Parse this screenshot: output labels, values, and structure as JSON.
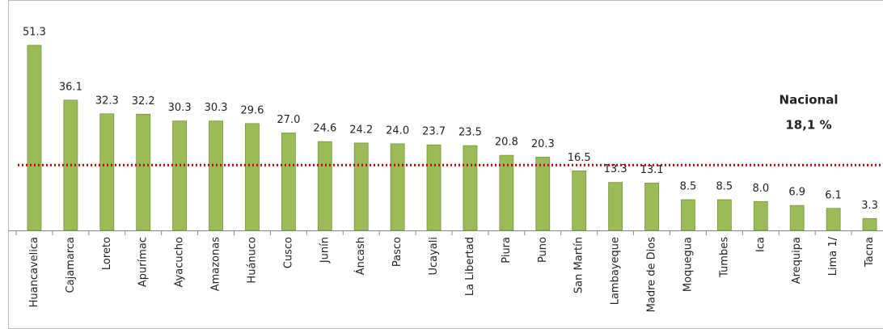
{
  "chart_data": {
    "type": "bar",
    "categories": [
      "Huancavelica",
      "Cajamarca",
      "Loreto",
      "Apurímac",
      "Ayacucho",
      "Amazonas",
      "Huánuco",
      "Cusco",
      "Junín",
      "Áncash",
      "Pasco",
      "Ucayali",
      "La Libertad",
      "Piura",
      "Puno",
      "San Martín",
      "Lambayeque",
      "Madre de Dios",
      "Moquegua",
      "Tumbes",
      "Ica",
      "Arequipa",
      "Lima 1/",
      "Tacna"
    ],
    "values": [
      51.3,
      36.1,
      32.3,
      32.2,
      30.3,
      30.3,
      29.6,
      27.0,
      24.6,
      24.2,
      24.0,
      23.7,
      23.5,
      20.8,
      20.3,
      16.5,
      13.3,
      13.1,
      8.5,
      8.5,
      8.0,
      6.9,
      6.1,
      3.3
    ],
    "value_labels": [
      "51.3",
      "36.1",
      "32.3",
      "32.2",
      "30.3",
      "30.3",
      "29.6",
      "27.0",
      "24.6",
      "24.2",
      "24.0",
      "23.7",
      "23.5",
      "20.8",
      "20.3",
      "16.5",
      "13.3",
      "13.1",
      "8.5",
      "8.5",
      "8.0",
      "6.9",
      "6.1",
      "3.3"
    ],
    "color": "#9bbb59",
    "reference_line": {
      "value": 18.1,
      "color": "#c00000",
      "label_lines": [
        "Nacional",
        "18,1 %"
      ]
    }
  }
}
